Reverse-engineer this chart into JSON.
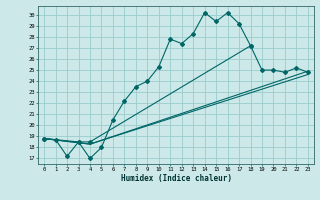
{
  "xlabel": "Humidex (Indice chaleur)",
  "bg_color": "#cce8e8",
  "grid_color": "#99cccc",
  "line_color": "#006666",
  "xlim": [
    -0.5,
    23.5
  ],
  "ylim": [
    16.5,
    30.8
  ],
  "yticks": [
    17,
    18,
    19,
    20,
    21,
    22,
    23,
    24,
    25,
    26,
    27,
    28,
    29,
    30
  ],
  "xticks": [
    0,
    1,
    2,
    3,
    4,
    5,
    6,
    7,
    8,
    9,
    10,
    11,
    12,
    13,
    14,
    15,
    16,
    17,
    18,
    19,
    20,
    21,
    22,
    23
  ],
  "curve1_x": [
    0,
    1,
    2,
    3,
    4,
    5,
    6,
    7,
    8,
    9,
    10,
    11,
    12,
    13,
    14,
    15,
    16,
    17,
    18
  ],
  "curve1_y": [
    18.8,
    18.7,
    17.2,
    18.5,
    17.0,
    18.0,
    20.5,
    22.2,
    23.5,
    24.0,
    25.3,
    27.8,
    27.4,
    28.3,
    30.2,
    29.4,
    30.2,
    29.2,
    27.2
  ],
  "curve2_x": [
    0,
    3,
    4,
    18,
    19,
    20,
    21,
    22,
    23
  ],
  "curve2_y": [
    18.8,
    18.5,
    18.5,
    27.2,
    25.0,
    25.0,
    24.8,
    25.2,
    24.8
  ],
  "curve3_x": [
    0,
    4,
    23
  ],
  "curve3_y": [
    18.8,
    18.3,
    24.6
  ],
  "curve4_x": [
    0,
    4,
    23
  ],
  "curve4_y": [
    18.8,
    18.3,
    24.9
  ]
}
